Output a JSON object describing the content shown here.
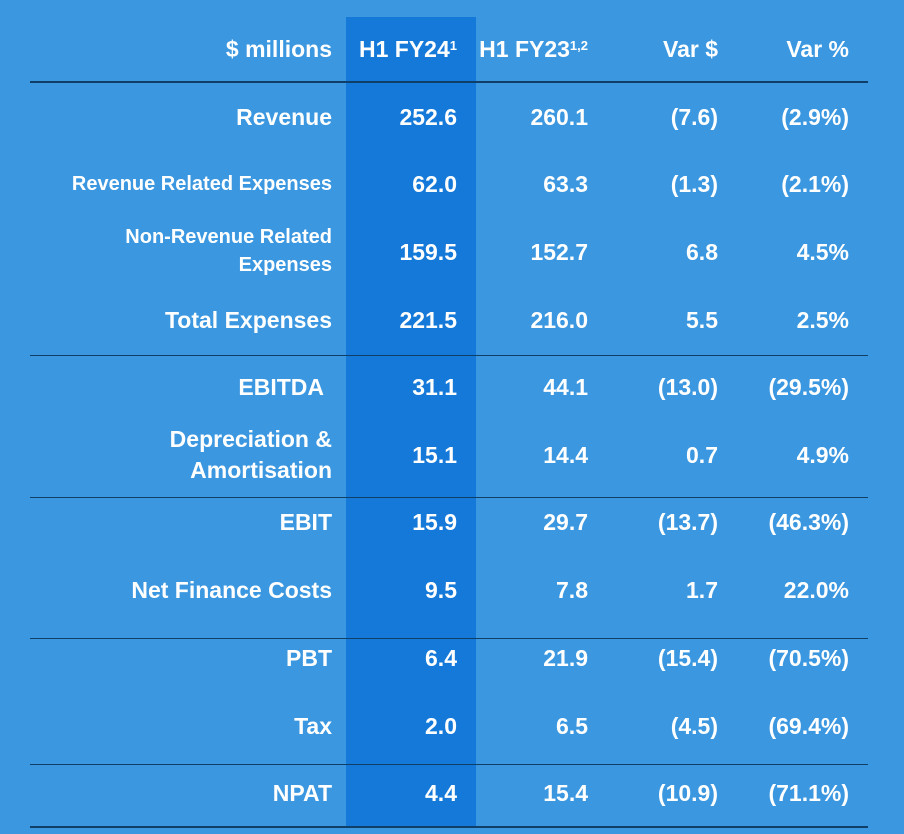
{
  "header": {
    "label": "$ millions",
    "col1": "H1 FY24",
    "col1_sup": "1",
    "col2": "H1 FY23",
    "col2_sup": "1,2",
    "col3": "Var $",
    "col4": "Var %"
  },
  "rows": [
    {
      "label": "Revenue",
      "h1fy24": "252.6",
      "h1fy23": "260.1",
      "var_d": "(7.6)",
      "var_p": "(2.9%)"
    },
    {
      "label": "Revenue Related Expenses",
      "h1fy24": "62.0",
      "h1fy23": "63.3",
      "var_d": "(1.3)",
      "var_p": "(2.1%)"
    },
    {
      "label_line1": "Non-Revenue Related",
      "label_line2": "Expenses",
      "h1fy24": "159.5",
      "h1fy23": "152.7",
      "var_d": "6.8",
      "var_p": "4.5%"
    },
    {
      "label": "Total Expenses",
      "h1fy24": "221.5",
      "h1fy23": "216.0",
      "var_d": "5.5",
      "var_p": "2.5%"
    },
    {
      "label": "EBITDA",
      "h1fy24": "31.1",
      "h1fy23": "44.1",
      "var_d": "(13.0)",
      "var_p": "(29.5%)"
    },
    {
      "label_line1": "Depreciation &",
      "label_line2": "Amortisation",
      "h1fy24": "15.1",
      "h1fy23": "14.4",
      "var_d": "0.7",
      "var_p": "4.9%"
    },
    {
      "label": "EBIT",
      "h1fy24": "15.9",
      "h1fy23": "29.7",
      "var_d": "(13.7)",
      "var_p": "(46.3%)"
    },
    {
      "label": "Net Finance Costs",
      "h1fy24": "9.5",
      "h1fy23": "7.8",
      "var_d": "1.7",
      "var_p": "22.0%"
    },
    {
      "label": "PBT",
      "h1fy24": "6.4",
      "h1fy23": "21.9",
      "var_d": "(15.4)",
      "var_p": "(70.5%)"
    },
    {
      "label": "Tax",
      "h1fy24": "2.0",
      "h1fy23": "6.5",
      "var_d": "(4.5)",
      "var_p": "(69.4%)"
    },
    {
      "label": "NPAT",
      "h1fy24": "4.4",
      "h1fy23": "15.4",
      "var_d": "(10.9)",
      "var_p": "(71.1%)"
    }
  ],
  "colors": {
    "background": "#3a97e0",
    "highlight_column": "#1479d8",
    "rule": "#0f3f66",
    "text": "#ffffff"
  }
}
